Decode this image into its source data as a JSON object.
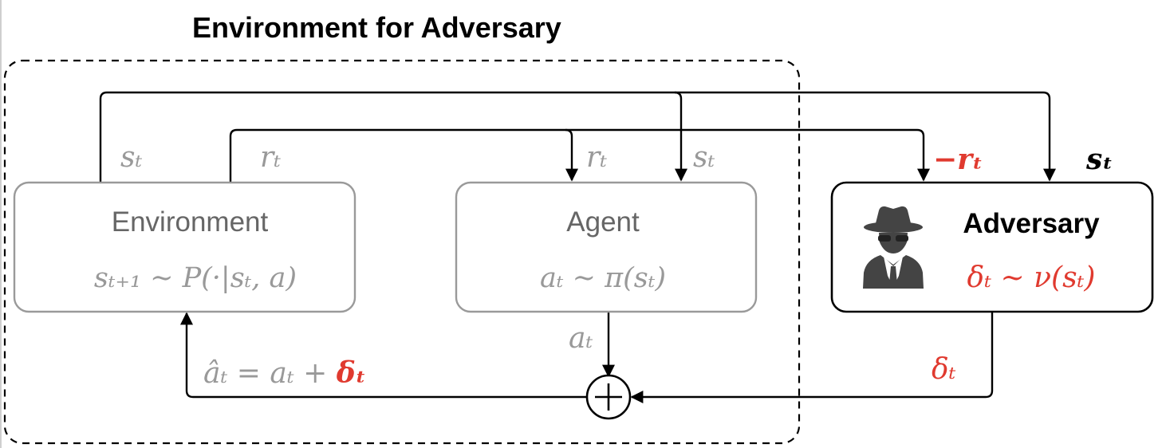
{
  "title": "Environment for Adversary",
  "boxes": {
    "environment": {
      "name": "Environment",
      "formula": "sₜ₊₁ ∼ P(·|sₜ, a)"
    },
    "agent": {
      "name": "Agent",
      "formula": "aₜ ∼ π(sₜ)"
    },
    "adversary": {
      "name": "Adversary",
      "formula": "δₜ ∼ ν(sₜ)",
      "icon": "spy-icon"
    }
  },
  "edge_labels": {
    "env_state_out": "sₜ",
    "env_reward_out": "rₜ",
    "agent_reward_in": "rₜ",
    "agent_state_in": "sₜ",
    "adversary_reward_in": "−rₜ",
    "adversary_state_in": "sₜ",
    "agent_action_out": "aₜ",
    "adversary_perturbation_out": "δₜ",
    "perturbed_action_base": "âₜ = aₜ + ",
    "perturbed_action_delta": "δₜ"
  },
  "sum_symbol": "+",
  "colors": {
    "faded": "#999999",
    "active": "#000000",
    "adversarial": "#e03a2f"
  }
}
